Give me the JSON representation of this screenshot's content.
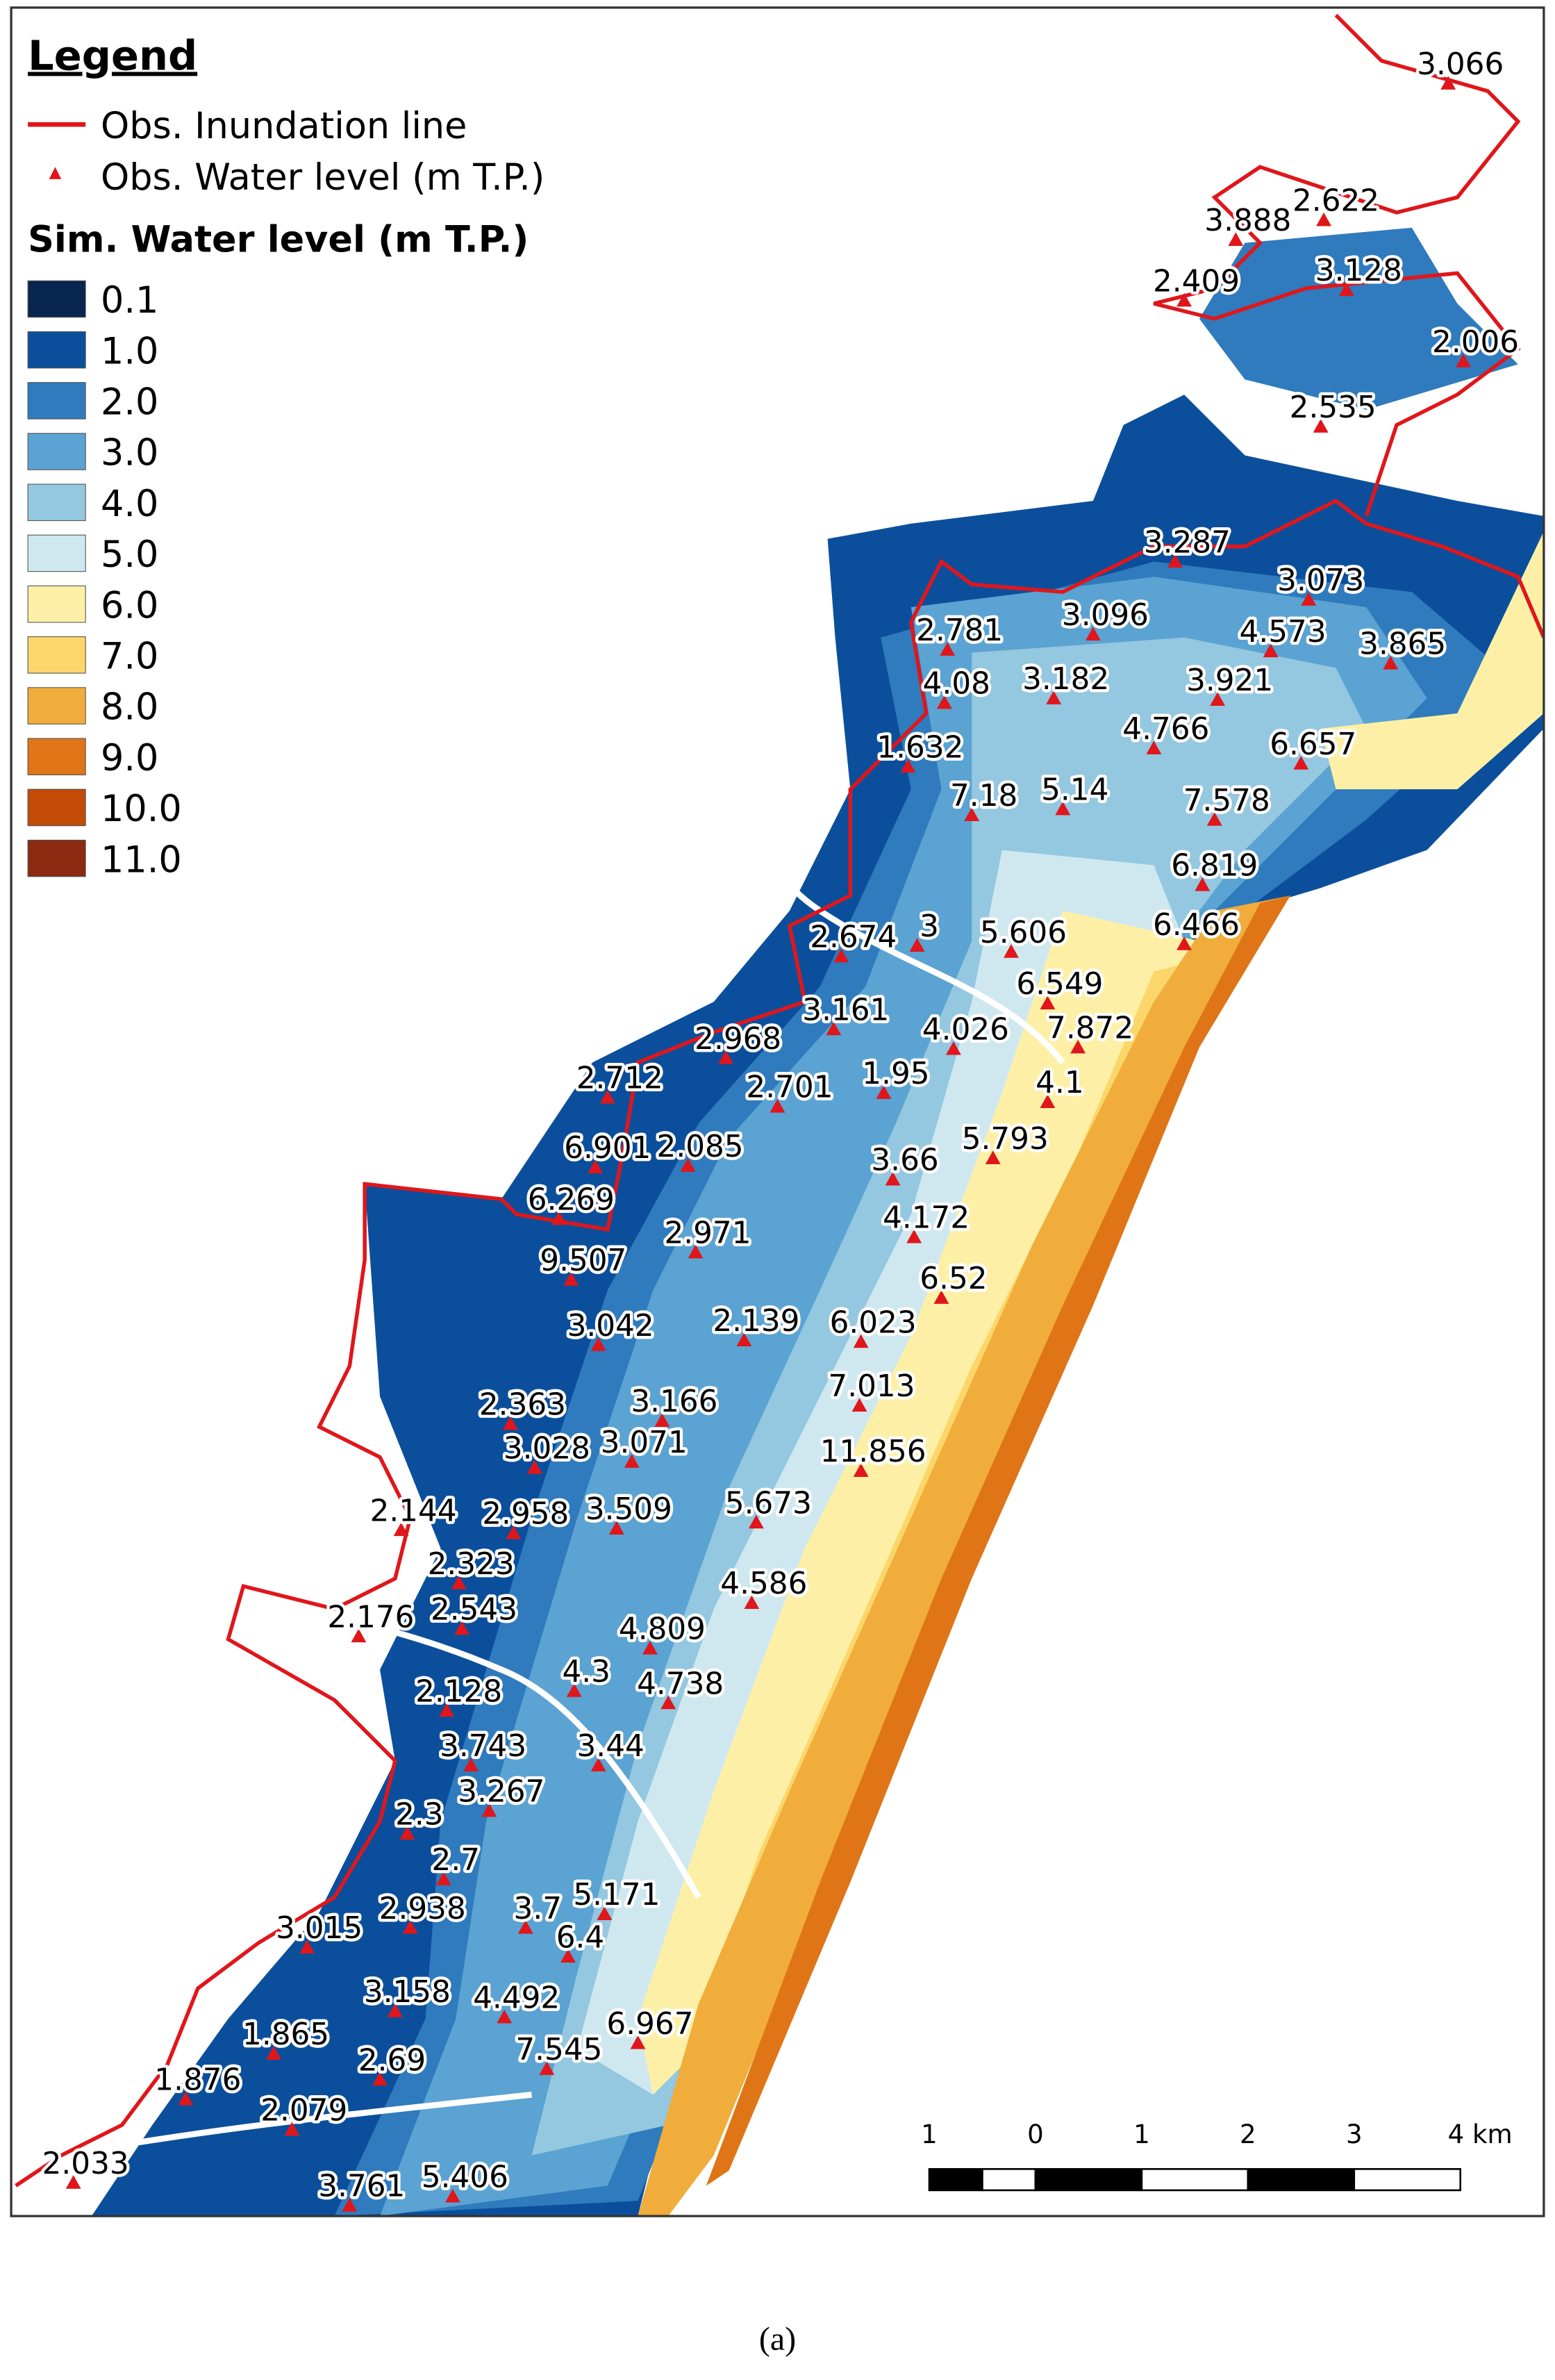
{
  "legend": {
    "title": "Legend",
    "inundation_line": "Obs. Inundation line",
    "water_level_obs": "Obs. Water level (m T.P.)",
    "sim_title": "Sim. Water level (m T.P.)",
    "classes": [
      {
        "label": "0.1",
        "color": "#08254f"
      },
      {
        "label": "1.0",
        "color": "#0b4f9c"
      },
      {
        "label": "2.0",
        "color": "#2f7bbd"
      },
      {
        "label": "3.0",
        "color": "#5aa3d2"
      },
      {
        "label": "4.0",
        "color": "#94c7e0"
      },
      {
        "label": "5.0",
        "color": "#cfe8f0"
      },
      {
        "label": "6.0",
        "color": "#fdf0a6"
      },
      {
        "label": "7.0",
        "color": "#fcd66a"
      },
      {
        "label": "8.0",
        "color": "#f0ad3c"
      },
      {
        "label": "9.0",
        "color": "#df7516"
      },
      {
        "label": "10.0",
        "color": "#c24c07"
      },
      {
        "label": "11.0",
        "color": "#8a2a10"
      }
    ]
  },
  "observations": [
    "3.066",
    "3.888",
    "2.622",
    "2.409",
    "3.128",
    "2.006",
    "2.535",
    "3.287",
    "3.073",
    "2.781",
    "3.096",
    "4.573",
    "3.865",
    "4.08",
    "3.182",
    "3.921",
    "4.766",
    "6.657",
    "1.632",
    "7.18",
    "5.14",
    "7.578",
    "6.819",
    "2.674",
    "3",
    "5.606",
    "6.466",
    "6.549",
    "3.161",
    "4.026",
    "7.872",
    "2.968",
    "2.712",
    "2.701",
    "1.95",
    "4.1",
    "6.901",
    "2.085",
    "5.793",
    "3.66",
    "6.269",
    "4.172",
    "2.971",
    "9.507",
    "6.52",
    "3.042",
    "2.139",
    "6.023",
    "7.013",
    "2.363",
    "3.166",
    "3.028",
    "3.071",
    "11.856",
    "2.144",
    "2.958",
    "3.509",
    "5.673",
    "2.323",
    "4.586",
    "2.176",
    "2.543",
    "4.809",
    "2.128",
    "4.3",
    "4.738",
    "3.743",
    "3.44",
    "3.267",
    "2.3",
    "2.7",
    "5.171",
    "2.938",
    "3.7",
    "3.015",
    "6.4",
    "3.158",
    "4.492",
    "6.967",
    "1.865",
    "7.545",
    "2.69",
    "1.876",
    "2.079",
    "2.033",
    "3.761",
    "5.406"
  ],
  "scale_bar": {
    "labels": [
      "1",
      "0",
      "1",
      "2",
      "3",
      "4 km"
    ]
  },
  "caption": "(a)"
}
